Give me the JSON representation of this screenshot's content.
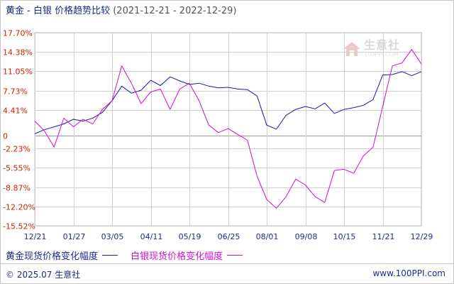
{
  "header": {
    "title": "黄金 - 白银 价格趋势比较",
    "date_range": "(2021-12-21 - 2022-12-29)"
  },
  "watermark": {
    "text": "生意社",
    "sub": "100PPI.COM"
  },
  "legend": {
    "gold_label": "黄金现货价格变化幅度",
    "silver_label": "白银现货价格变化幅度"
  },
  "footer": {
    "copyright": "© 2025.07 生意社",
    "site": "www.100PPI.com"
  },
  "colors": {
    "gold": "#1a1ab4",
    "silver": "#cc11cc",
    "grid": "#d0d0d0",
    "axis_text": "#cc2200",
    "date_text": "#1f2b8c"
  },
  "chart_data": {
    "type": "line",
    "ylim": [
      -15.52,
      17.7
    ],
    "y_ticks": [
      17.7,
      14.38,
      11.05,
      7.73,
      4.41,
      0,
      -2.23,
      -5.55,
      -8.87,
      -12.2,
      -15.52
    ],
    "y_tick_labels": [
      "17.70%",
      "14.38%",
      "11.05%",
      "7.73%",
      "4.41%",
      "0",
      "-2.23%",
      "-5.55%",
      "-8.87%",
      "-12.20%",
      "-15.52%"
    ],
    "x_ticks": [
      "12/21",
      "01/27",
      "03/05",
      "04/11",
      "05/19",
      "06/25",
      "08/01",
      "09/08",
      "10/15",
      "11/21",
      "12/29"
    ],
    "series": [
      {
        "name": "黄金现货价格变化幅度",
        "x": [
          0,
          1,
          2,
          3,
          4,
          5,
          6,
          7,
          8,
          9,
          10,
          11,
          12,
          13,
          14,
          15,
          16,
          17,
          18,
          19,
          20,
          21,
          22,
          23,
          24,
          25,
          26,
          27,
          28,
          29,
          30,
          31,
          32,
          33,
          34,
          35,
          36,
          37,
          38,
          39,
          40
        ],
        "y": [
          0.3,
          1.0,
          1.5,
          2.0,
          2.8,
          2.5,
          3.0,
          4.0,
          6.0,
          8.5,
          7.3,
          7.8,
          9.5,
          8.6,
          10.1,
          9.4,
          8.8,
          9.0,
          8.5,
          8.2,
          8.3,
          8.0,
          7.9,
          6.8,
          1.8,
          1.1,
          3.5,
          4.5,
          5.0,
          4.6,
          5.6,
          3.8,
          4.5,
          4.8,
          5.2,
          6.2,
          10.4,
          10.5,
          11.0,
          10.3,
          11.0
        ]
      },
      {
        "name": "白银现货价格变化幅度",
        "x": [
          0,
          1,
          2,
          3,
          4,
          5,
          6,
          7,
          8,
          9,
          10,
          11,
          12,
          13,
          14,
          15,
          16,
          17,
          18,
          19,
          20,
          21,
          22,
          23,
          24,
          25,
          26,
          27,
          28,
          29,
          30,
          31,
          32,
          33,
          34,
          35,
          36,
          37,
          38,
          39,
          40
        ],
        "y": [
          2.5,
          0.8,
          -2.0,
          3.0,
          1.5,
          2.8,
          2.0,
          4.5,
          6.0,
          12.0,
          9.0,
          5.5,
          7.5,
          8.0,
          4.5,
          8.0,
          9.0,
          6.0,
          1.8,
          0.5,
          1.2,
          0.2,
          -0.8,
          -7.0,
          -11.0,
          -12.5,
          -10.5,
          -7.5,
          -8.5,
          -10.5,
          -11.5,
          -6.0,
          -5.8,
          -6.5,
          -3.5,
          -2.0,
          5.0,
          12.0,
          12.5,
          14.8,
          12.3
        ]
      }
    ]
  }
}
